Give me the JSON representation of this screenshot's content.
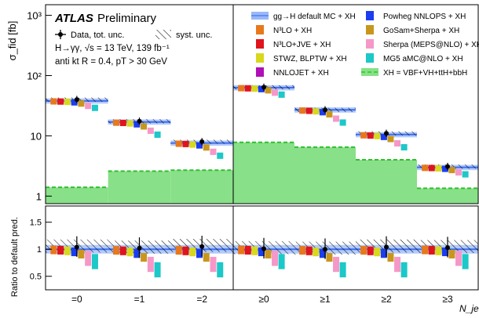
{
  "chart_data": [
    {
      "type": "bar",
      "panel": "main",
      "ylabel": "σ_fid [fb]",
      "yscale": "log",
      "ylim": [
        0.75,
        1500
      ],
      "yticks": [
        "1",
        "10",
        "10²",
        "10³"
      ],
      "left_section": {
        "categories": [
          "=0",
          "=1",
          "=2"
        ],
        "default_mc": [
          38,
          17,
          7.6
        ],
        "data": [
          40,
          17.5,
          8.0
        ],
        "xh": [
          1.4,
          2.6,
          2.7
        ]
      },
      "right_section": {
        "categories": [
          "≥0",
          "≥1",
          "≥2",
          "≥3"
        ],
        "default_mc": [
          63,
          27,
          10.5,
          3.0
        ],
        "data": [
          64,
          27,
          11,
          3.1
        ],
        "xh": [
          7.8,
          6.5,
          4.0,
          1.35
        ]
      },
      "legend_left": {
        "experiment": "ATLAS",
        "status": "Preliminary",
        "data_label": "Data, tot. unc.",
        "syst_label": "syst. unc.",
        "process": "H→γγ, √s = 13 TeV,  139 fb⁻¹",
        "cuts": "anti kt R = 0.4, pT > 30 GeV"
      },
      "legend": [
        {
          "label": "gg→H default MC + XH",
          "marker": "line",
          "color": "#5f8ff5"
        },
        {
          "label": "N³LO + XH",
          "marker": "square",
          "color": "#e8781c"
        },
        {
          "label": "N³LO+JVE + XH",
          "marker": "square",
          "color": "#e0141c"
        },
        {
          "label": "STWZ, BLPTW + XH",
          "marker": "diamond",
          "color": "#d8d81c"
        },
        {
          "label": "NNLOJET + XH",
          "marker": "circle",
          "color": "#b00fb8"
        },
        {
          "label": "Powheg NNLOPS + XH",
          "marker": "diamond",
          "color": "#1c3cf0"
        },
        {
          "label": "GoSam+Sherpa + XH",
          "marker": "triangle-up",
          "color": "#c8961c"
        },
        {
          "label": "Sherpa (MEPS@NLO) + XH",
          "marker": "triangle-up",
          "color": "#f598c8"
        },
        {
          "label": "MG5 aMC@NLO + XH",
          "marker": "triangle-down",
          "color": "#1cc8c8"
        },
        {
          "label": "XH = VBF+VH+ttH+bbH",
          "marker": "dashed",
          "color": "#3ad33a"
        }
      ]
    },
    {
      "type": "bar",
      "panel": "ratio",
      "ylabel": "Ratio to default pred.",
      "ylim": [
        0.25,
        1.8
      ],
      "yticks": [
        "0.5",
        "1",
        "1.5"
      ],
      "xlabel": "N_jets",
      "categories": [
        "=0",
        "=1",
        "=2",
        "≥0",
        "≥1",
        "≥2",
        "≥3"
      ],
      "data_ratio": [
        1.04,
        1.02,
        1.05,
        1.01,
        1.0,
        1.04,
        1.03
      ]
    }
  ]
}
